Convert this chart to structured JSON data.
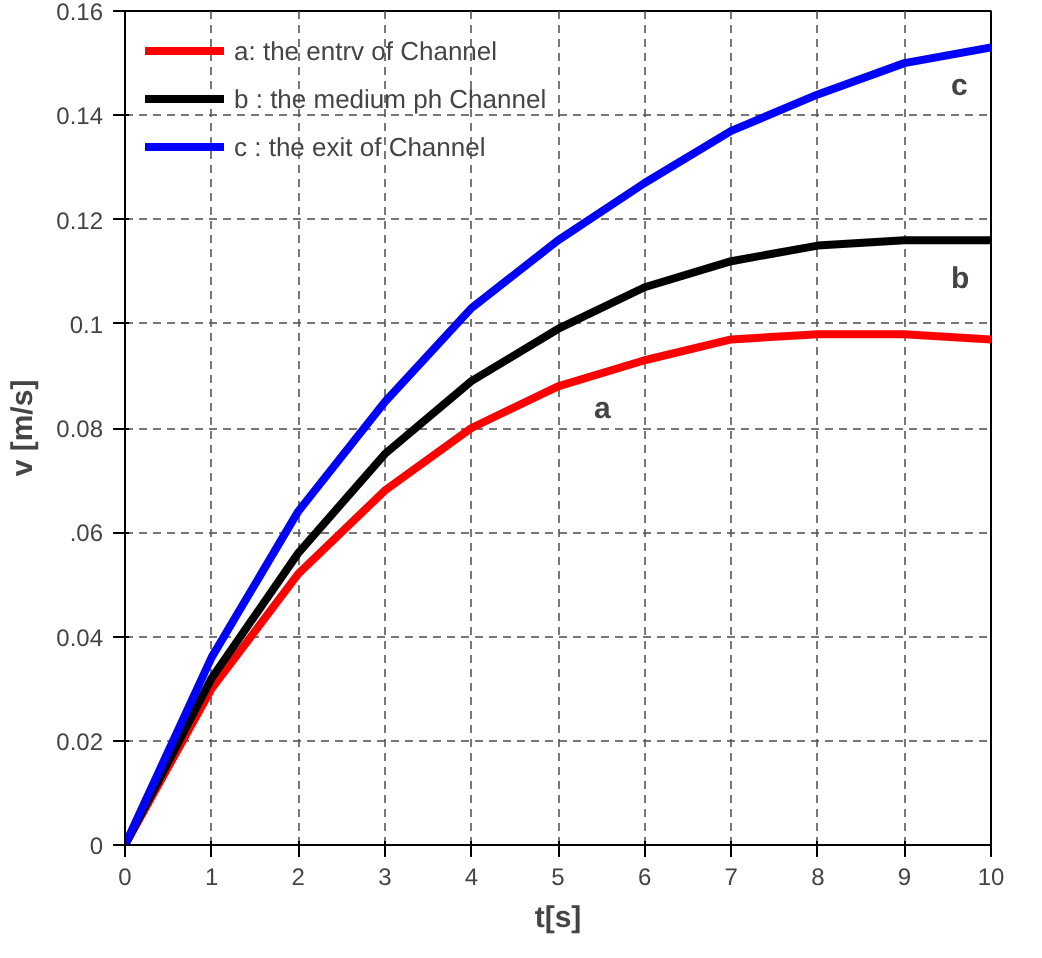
{
  "chart_data": {
    "type": "line",
    "xlabel": "t[s]",
    "ylabel": "v [m/s]",
    "x": [
      0,
      1,
      2,
      3,
      4,
      5,
      6,
      7,
      8,
      9,
      10
    ],
    "series": [
      {
        "name": "a: the entrv of Channel",
        "color": "#ff0000",
        "values": [
          0,
          0.03,
          0.052,
          0.068,
          0.08,
          0.088,
          0.093,
          0.097,
          0.098,
          0.098,
          0.097
        ]
      },
      {
        "name": "b : the medium ph Channel",
        "color": "#000000",
        "values": [
          0,
          0.032,
          0.056,
          0.075,
          0.089,
          0.099,
          0.107,
          0.112,
          0.115,
          0.116,
          0.116
        ]
      },
      {
        "name": "c : the exit of Channel",
        "color": "#0000ff",
        "values": [
          0,
          0.036,
          0.064,
          0.085,
          0.103,
          0.116,
          0.127,
          0.137,
          0.144,
          0.15,
          0.153
        ]
      }
    ],
    "annotations": [
      "a",
      "b",
      "c"
    ],
    "xlim": [
      0,
      10
    ],
    "ylim": [
      0,
      0.16
    ],
    "xticks": [
      0,
      1,
      2,
      3,
      4,
      5,
      6,
      7,
      8,
      9,
      10
    ],
    "yticks": [
      0,
      0.02,
      0.04,
      {
        "value": 0.06,
        "label": ".06"
      },
      0.08,
      0.1,
      0.12,
      0.14,
      0.16
    ],
    "grid": true,
    "legend": "top left",
    "marker": "none",
    "line_style": "solid"
  }
}
